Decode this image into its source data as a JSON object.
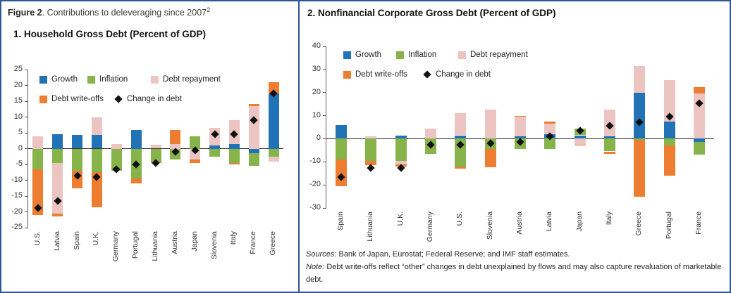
{
  "figure": {
    "caption_bold": "Figure 2",
    "caption_rest": ". Contributions to deleveraging since 2007",
    "caption_sup": "2"
  },
  "colors": {
    "growth": "#2272B6",
    "inflation": "#87B34B",
    "repayment": "#ECC5C3",
    "writeoffs": "#ED7D31",
    "change": "#111111",
    "frame": "#2F5597",
    "axis": "#595959",
    "zero_line": "#333333"
  },
  "legend": {
    "growth": "Growth",
    "inflation": "Inflation",
    "repayment": "Debt repayment",
    "writeoffs": "Debt write-offs",
    "change": "Change in debt"
  },
  "footer": {
    "sources_label": "Sources:",
    "sources_text": " Bank of Japan, Eurostat; Federal Reserve; and IMF staff estimates.",
    "note_label": "Note:",
    "note_text": " Debt write-offs reflect “other” changes in debt unexplained by flows and may also capture revaluation of marketable debt."
  },
  "chart_data": [
    {
      "id": "household",
      "type": "bar",
      "stacked": true,
      "title": "1. Household Gross Debt (Percent of GDP)",
      "xlabel": "",
      "ylabel": "Percent of GDP",
      "ylim": [
        -25,
        25
      ],
      "ytick": 5,
      "grid": false,
      "legend_position": "top-left-inside",
      "categories": [
        "U.S.",
        "Latvia",
        "Spain",
        "U.K.",
        "Germany",
        "Portugal",
        "Lithuania",
        "Austria",
        "Japan",
        "Slovenia",
        "Italy",
        "France",
        "Greece"
      ],
      "series": [
        {
          "name": "Growth",
          "key": "growth",
          "values": [
            0,
            4.5,
            4.3,
            4.3,
            0,
            6,
            0,
            0,
            0,
            1,
            1.5,
            -1.5,
            17.5
          ]
        },
        {
          "name": "Inflation",
          "key": "inflation",
          "values": [
            -6.5,
            -4.5,
            -7,
            -7.5,
            -7,
            -9.5,
            -4,
            -3.5,
            4,
            -2.5,
            -4.5,
            -4,
            -2.5
          ]
        },
        {
          "name": "Debt repayment",
          "key": "repayment",
          "values": [
            4,
            -16,
            0,
            5.7,
            1.5,
            0,
            1.2,
            1.5,
            -3.5,
            5.5,
            7.5,
            13.5,
            -1.5
          ]
        },
        {
          "name": "Debt write-offs",
          "key": "writeoffs",
          "values": [
            -14.5,
            -1,
            -5.5,
            -11,
            0,
            -1.5,
            -0.5,
            4.5,
            -1,
            0,
            -0.5,
            0.7,
            3.5
          ]
        }
      ],
      "markers": {
        "name": "Change in debt",
        "key": "change",
        "values": [
          -18.7,
          -16.5,
          -8.5,
          -9,
          -6.5,
          -5,
          -4.5,
          -1,
          -0.5,
          4.5,
          4.5,
          9,
          17.5
        ]
      }
    },
    {
      "id": "corporate",
      "type": "bar",
      "stacked": true,
      "title": "2. Nonfinancial Corporate Gross Debt (Percent of GDP)",
      "xlabel": "",
      "ylabel": "Percent of GDP",
      "ylim": [
        -30,
        40
      ],
      "ytick": 10,
      "grid": false,
      "legend_position": "top-left-inside",
      "categories": [
        "Spain",
        "Lithuania",
        "U.K.",
        "Germany",
        "U.S.",
        "Slovenia",
        "Austria",
        "Latvia",
        "Japan",
        "Italy",
        "Greece",
        "Portugal",
        "France"
      ],
      "series": [
        {
          "name": "Growth",
          "key": "growth",
          "values": [
            6,
            0,
            1.5,
            0,
            1.5,
            0,
            1,
            2,
            1.5,
            1,
            20,
            7.5,
            -1.5
          ]
        },
        {
          "name": "Inflation",
          "key": "inflation",
          "values": [
            -9,
            -9.5,
            -9.5,
            -6.5,
            -12,
            -4.5,
            -4.5,
            -4.5,
            3,
            -5.5,
            -0.5,
            -3,
            -5.5
          ]
        },
        {
          "name": "Debt repayment",
          "key": "repayment",
          "values": [
            0,
            1,
            -1.5,
            4.5,
            9.5,
            12.5,
            8.5,
            4.5,
            -2.5,
            11.5,
            11.5,
            18,
            19.5
          ]
        },
        {
          "name": "Debt write-offs",
          "key": "writeoffs",
          "values": [
            -11.5,
            -2,
            -1,
            0,
            -1,
            -8,
            0.5,
            1,
            -0.5,
            -1,
            -24.5,
            -13,
            3
          ]
        }
      ],
      "markers": {
        "name": "Change in debt",
        "key": "change",
        "values": [
          -16.5,
          -12.5,
          -12.5,
          -2.5,
          -2.5,
          -2,
          -1.5,
          1,
          3.5,
          5.5,
          7,
          9.5,
          15.5
        ]
      }
    }
  ]
}
